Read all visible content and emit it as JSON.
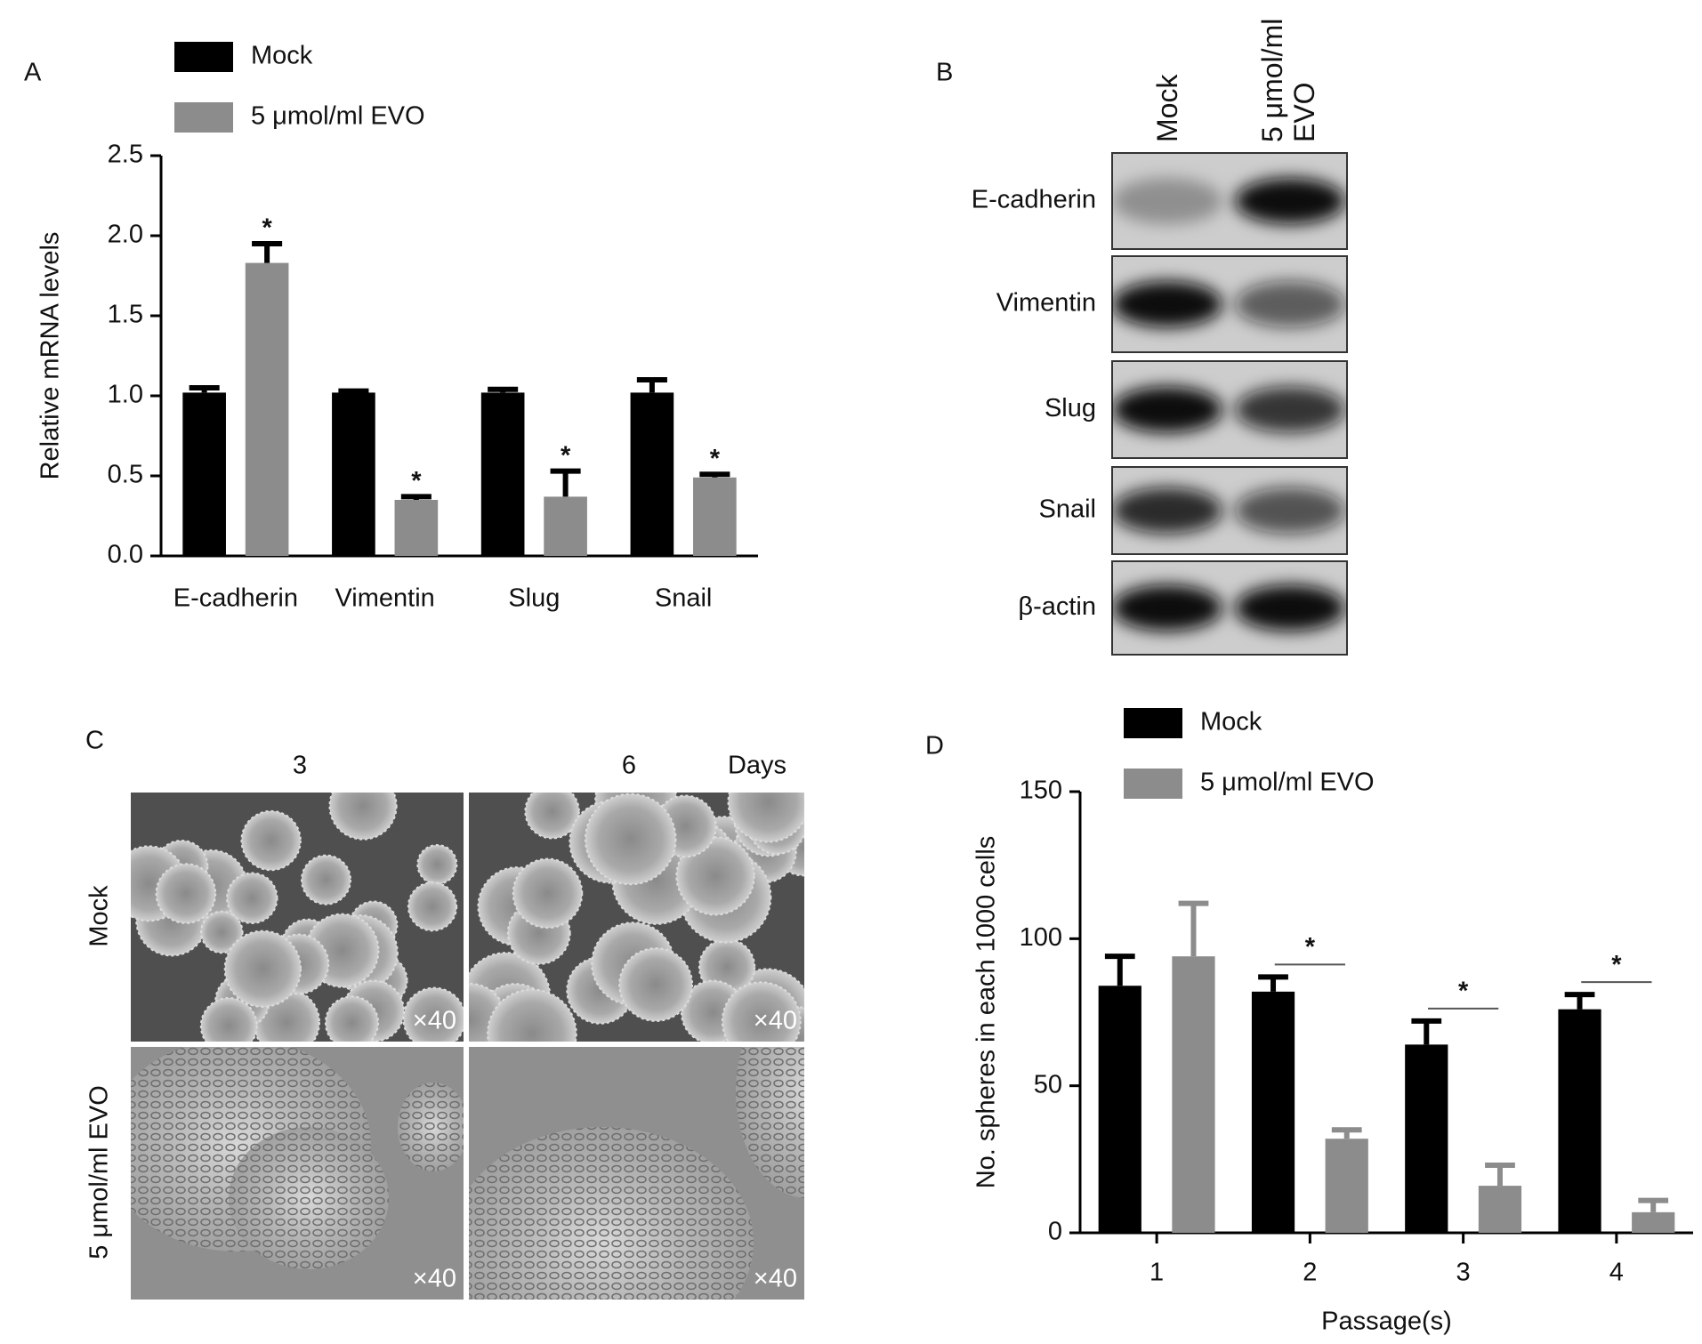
{
  "chart_data": [
    {
      "type": "bar",
      "label": "A",
      "y_label": "Relative mRNA levels",
      "categories": [
        "E-cadherin",
        "Vimentin",
        "Slug",
        "Snail"
      ],
      "series": [
        {
          "name": "Mock",
          "color": "#000000",
          "values": [
            1.02,
            1.02,
            1.02,
            1.02
          ],
          "errors": [
            0.03,
            0.01,
            0.02,
            0.08
          ]
        },
        {
          "name": "5 μmol/ml EVO",
          "color": "#8c8c8c",
          "values": [
            1.83,
            0.35,
            0.37,
            0.49
          ],
          "errors": [
            0.12,
            0.02,
            0.16,
            0.02
          ],
          "significance": [
            "*",
            "*",
            "*",
            "*"
          ]
        }
      ],
      "ylim": [
        0,
        2.5
      ],
      "yticks": [
        {
          "value": 0,
          "label": "0.0"
        },
        0.5,
        {
          "value": 1,
          "label": "1.0"
        },
        1.5,
        {
          "value": 2,
          "label": "2.0"
        },
        2.5
      ],
      "legend": "top-left"
    },
    {
      "type": "bar",
      "label": "D",
      "x_label": "Passage(s)",
      "y_label": "No. spheres in each 1000 cells",
      "categories": [
        "1",
        "2",
        "3",
        "4"
      ],
      "series": [
        {
          "name": "Mock",
          "color": "#000000",
          "values": [
            84,
            82,
            64,
            76
          ],
          "errors": [
            10,
            5,
            8,
            5
          ]
        },
        {
          "name": "5 μmol/ml EVO",
          "color": "#8c8c8c",
          "values": [
            94,
            32,
            16,
            7
          ],
          "errors": [
            18,
            3,
            7,
            4
          ]
        }
      ],
      "significance": [
        null,
        "*",
        "*",
        "*"
      ],
      "ylim": [
        0,
        150
      ],
      "yticks": [
        0,
        50,
        100,
        150
      ],
      "legend": "top-left"
    }
  ],
  "western_blot": {
    "label": "B",
    "lanes": [
      "Mock",
      "5 μmol/ml EVO"
    ],
    "proteins": [
      "E-cadherin",
      "Vimentin",
      "Slug",
      "Snail",
      "β-actin"
    ]
  },
  "micrographs": {
    "label": "C",
    "time_points": [
      "3",
      "6"
    ],
    "time_unit": "Days",
    "conditions": [
      "Mock",
      "5 μmol/ml EVO"
    ],
    "magnification": "×40"
  }
}
